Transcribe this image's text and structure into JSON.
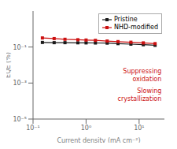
{
  "chart_data": {
    "type": "line",
    "xlabel": "Current density (mA cm⁻²)",
    "ylabel": "EQE (%)",
    "x": [
      0.15,
      0.25,
      0.4,
      0.7,
      1.0,
      1.5,
      2.5,
      4.0,
      7.0,
      12.0,
      20.0
    ],
    "series": [
      {
        "name": "Pristine",
        "color": "#1a1a1a",
        "marker": "square",
        "values": [
          0.18,
          0.175,
          0.175,
          0.172,
          0.17,
          0.168,
          0.165,
          0.155,
          0.145,
          0.135,
          0.125
        ]
      },
      {
        "name": "NHD-modified",
        "color": "#cc1111",
        "marker": "square",
        "values": [
          0.32,
          0.295,
          0.27,
          0.255,
          0.245,
          0.235,
          0.215,
          0.2,
          0.185,
          0.17,
          0.155
        ]
      }
    ],
    "xlim": [
      0.1,
      30
    ],
    "ylim": [
      1e-05,
      10
    ],
    "xticks": [
      {
        "value": 0.1,
        "label": "10⁻¹"
      },
      {
        "value": 1,
        "label": "10⁰"
      },
      {
        "value": 10,
        "label": "10¹"
      }
    ],
    "yticks": [
      {
        "value": 1e-05,
        "label": "10⁻⁵"
      },
      {
        "value": 0.001,
        "label": "10⁻³"
      },
      {
        "value": 0.1,
        "label": "10⁻¹"
      }
    ],
    "log": true,
    "grid": false,
    "legend": "upper right",
    "annotations": [
      {
        "text": "Suppressing\noxidation",
        "color": "#cc1111"
      },
      {
        "text": "Slowing\ncrystallization",
        "color": "#cc1111"
      }
    ]
  }
}
